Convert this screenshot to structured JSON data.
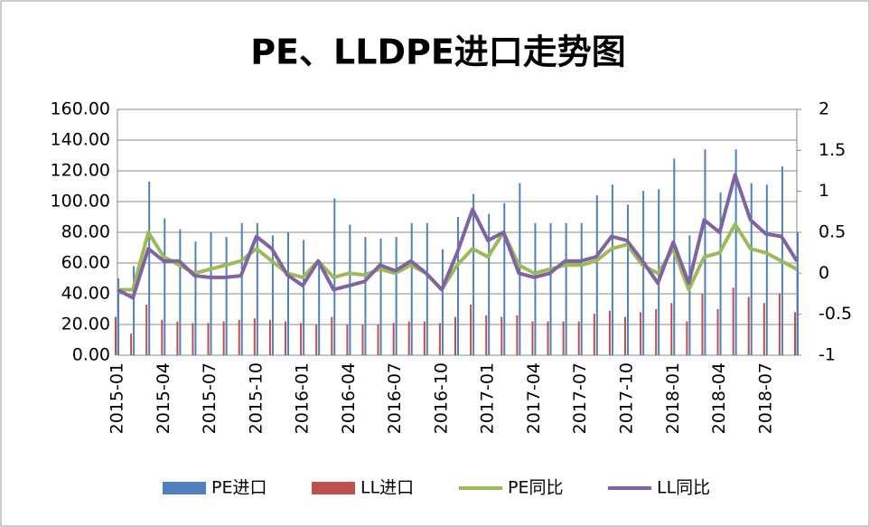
{
  "chart_data": {
    "type": "bar",
    "title": "PE、LLDPE进口走势图",
    "categories": [
      "2015-01",
      null,
      null,
      "2015-04",
      null,
      null,
      "2015-07",
      null,
      null,
      "2015-10",
      null,
      null,
      "2016-01",
      null,
      null,
      "2016-04",
      null,
      null,
      "2016-07",
      null,
      null,
      "2016-10",
      null,
      null,
      "2017-01",
      null,
      null,
      "2017-04",
      null,
      null,
      "2017-07",
      null,
      null,
      "2017-10",
      null,
      null,
      "2018-01",
      null,
      null,
      "2018-04",
      null,
      null,
      "2018-07",
      null,
      null
    ],
    "series": [
      {
        "name": "PE进口",
        "type": "bar",
        "color": "#4f81bd",
        "values": [
          50,
          58,
          113,
          89,
          82,
          74,
          80,
          77,
          86,
          86,
          78,
          80,
          75,
          62,
          102,
          85,
          77,
          76,
          77,
          86,
          86,
          69,
          90,
          105,
          92,
          99,
          112,
          86,
          86,
          86,
          86,
          104,
          111,
          98,
          107,
          108,
          128,
          78,
          134,
          106,
          134,
          112,
          111,
          123,
          80
        ]
      },
      {
        "name": "LL进口",
        "type": "bar",
        "color": "#c0504d",
        "values": [
          25,
          14,
          33,
          23,
          22,
          21,
          21,
          22,
          23,
          24,
          23,
          22,
          21,
          20,
          25,
          20,
          20,
          20,
          21,
          22,
          22,
          21,
          25,
          33,
          26,
          25,
          26,
          22,
          22,
          22,
          22,
          27,
          29,
          25,
          28,
          30,
          34,
          22,
          40,
          30,
          44,
          38,
          34,
          40,
          28
        ]
      },
      {
        "name": "PE同比",
        "type": "line",
        "axis": "y2",
        "color": "#9bbb59",
        "values": [
          -0.2,
          -0.2,
          0.5,
          0.2,
          0.1,
          0.0,
          0.05,
          0.1,
          0.15,
          0.3,
          0.15,
          0.0,
          -0.05,
          0.15,
          -0.05,
          0.0,
          -0.02,
          0.05,
          0.0,
          0.1,
          0.0,
          -0.2,
          0.1,
          0.3,
          0.2,
          0.5,
          0.1,
          0.0,
          0.05,
          0.1,
          0.1,
          0.15,
          0.3,
          0.35,
          0.1,
          0.0,
          0.3,
          -0.2,
          0.2,
          0.25,
          0.6,
          0.3,
          0.25,
          0.15,
          0.05
        ]
      },
      {
        "name": "LL同比",
        "type": "line",
        "axis": "y2",
        "color": "#8064a2",
        "values": [
          -0.2,
          -0.3,
          0.3,
          0.15,
          0.15,
          -0.03,
          -0.05,
          -0.05,
          -0.03,
          0.45,
          0.3,
          -0.02,
          -0.15,
          0.15,
          -0.2,
          -0.15,
          -0.1,
          0.1,
          0.03,
          0.15,
          0.0,
          -0.2,
          0.25,
          0.78,
          0.4,
          0.5,
          0.0,
          -0.05,
          0.0,
          0.15,
          0.15,
          0.2,
          0.45,
          0.4,
          0.15,
          -0.12,
          0.38,
          -0.12,
          0.65,
          0.5,
          1.2,
          0.65,
          0.48,
          0.45,
          0.15
        ]
      }
    ],
    "ylim": [
      0,
      160
    ],
    "yticks": [
      {
        "value": 0,
        "label": "0.00"
      },
      {
        "value": 20,
        "label": "20.00"
      },
      {
        "value": 40,
        "label": "40.00"
      },
      {
        "value": 60,
        "label": "60.00"
      },
      {
        "value": 80,
        "label": "80.00"
      },
      {
        "value": 100,
        "label": "100.00"
      },
      {
        "value": 120,
        "label": "120.00"
      },
      {
        "value": 140,
        "label": "140.00"
      },
      {
        "value": 160,
        "label": "160.00"
      }
    ],
    "y2lim": [
      -1,
      2
    ],
    "y2ticks": [
      -1,
      -0.5,
      0,
      0.5,
      1,
      1.5,
      2
    ],
    "grid": true,
    "legend": "bottom"
  }
}
